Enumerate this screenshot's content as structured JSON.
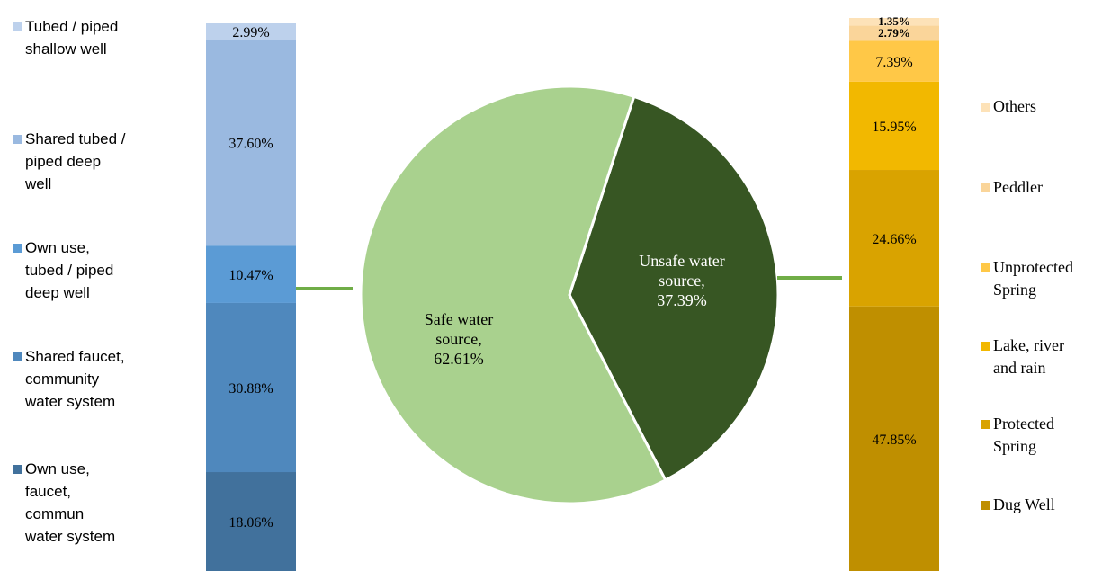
{
  "chart_data": [
    {
      "type": "bar",
      "stacked": true,
      "orientation": "vertical",
      "unit": "%",
      "segments": [
        {
          "name": "Own use, faucet, commun water system",
          "value": 18.06,
          "label": "18.06%",
          "color": "#41719c"
        },
        {
          "name": "Shared faucet, community water system",
          "value": 30.88,
          "label": "30.88%",
          "color": "#4f88bd"
        },
        {
          "name": "Own use, tubed / piped deep well",
          "value": 10.47,
          "label": "10.47%",
          "color": "#5b9bd5"
        },
        {
          "name": "Shared tubed / piped deep well",
          "value": 37.6,
          "label": "37.60%",
          "color": "#9ab9e0"
        },
        {
          "name": "Tubed / piped shallow well",
          "value": 2.99,
          "label": "2.99%",
          "color": "#bdd1ec"
        }
      ],
      "legend": [
        {
          "lines": [
            "Tubed / piped",
            "shallow well"
          ],
          "color": "#bdd1ec"
        },
        {
          "lines": [
            "Shared tubed /",
            "piped deep",
            "well"
          ],
          "color": "#9ab9e0"
        },
        {
          "lines": [
            "Own use,",
            "tubed / piped",
            "deep well"
          ],
          "color": "#5b9bd5"
        },
        {
          "lines": [
            "Shared faucet,",
            "community",
            "water system"
          ],
          "color": "#4f88bd"
        },
        {
          "lines": [
            "Own use,",
            "faucet,",
            "commun",
            "water system"
          ],
          "color": "#41719c"
        }
      ],
      "legend_placement": "left"
    },
    {
      "type": "pie",
      "unit": "%",
      "slices": [
        {
          "name": "Unsafe water source",
          "value": 37.39,
          "label_lines": [
            "Unsafe water",
            "source,",
            "37.39%"
          ],
          "color": "#375623",
          "text_color": "#ffffff"
        },
        {
          "name": "Safe water source",
          "value": 62.61,
          "label_lines": [
            "Safe water",
            "source,",
            "62.61%"
          ],
          "color": "#a9d18e",
          "text_color": "#000000"
        }
      ]
    },
    {
      "type": "bar",
      "stacked": true,
      "orientation": "vertical",
      "unit": "%",
      "segments": [
        {
          "name": "Dug Well",
          "value": 47.85,
          "label": "47.85%",
          "color": "#bf8f00"
        },
        {
          "name": "Protected Spring",
          "value": 24.66,
          "label": "24.66%",
          "color": "#d9a300"
        },
        {
          "name": "Lake, river and rain",
          "value": 15.95,
          "label": "15.95%",
          "color": "#f2b800"
        },
        {
          "name": "Unprotected Spring",
          "value": 7.39,
          "label": "7.39%",
          "color": "#ffc847"
        },
        {
          "name": "Peddler",
          "value": 2.79,
          "label": "2.79%",
          "color": "#fad59a"
        },
        {
          "name": "Others",
          "value": 1.35,
          "label": "1.35%",
          "color": "#fde2b8"
        }
      ],
      "legend": [
        {
          "lines": [
            "Others"
          ],
          "color": "#fde2b8"
        },
        {
          "lines": [
            "Peddler"
          ],
          "color": "#fad59a"
        },
        {
          "lines": [
            "Unprotected",
            "Spring"
          ],
          "color": "#ffc847"
        },
        {
          "lines": [
            "Lake, river",
            "and rain"
          ],
          "color": "#f2b800"
        },
        {
          "lines": [
            "Protected",
            "Spring"
          ],
          "color": "#d9a300"
        },
        {
          "lines": [
            "Dug Well"
          ],
          "color": "#bf8f00"
        }
      ],
      "legend_placement": "right"
    }
  ],
  "colors": {
    "connector": "#70ad47",
    "pie_border": "#ffffff"
  }
}
